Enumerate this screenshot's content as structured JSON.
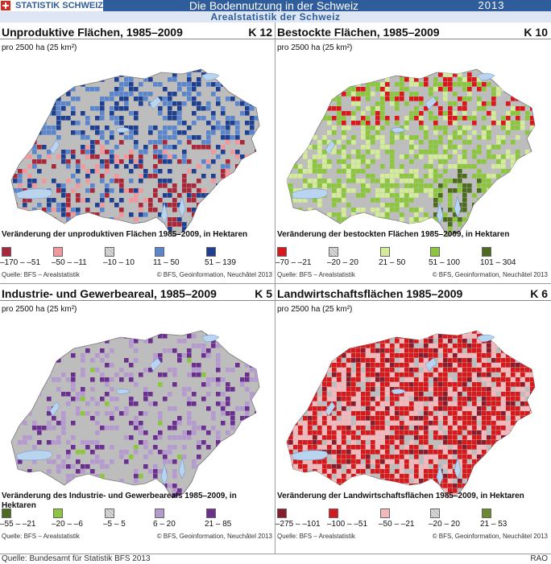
{
  "header": {
    "brand": "STATISTIK SCHWEIZ",
    "title": "Die Bodennutzung in der Schweiz",
    "year": "2013",
    "subtitle": "Arealstatistik der Schweiz"
  },
  "unit_label": "pro 2500 ha (25 km²)",
  "panels": [
    {
      "title": "Unproduktive Flächen, 1985–2009",
      "code": "K 12",
      "legend_title": "Veränderung der unproduktiven Flächen 1985–2009, in Hektaren",
      "legend": [
        {
          "label": "–170 – –51",
          "color": "#a6283a"
        },
        {
          "label": "–50 – –11",
          "color": "#f0989c"
        },
        {
          "label": "–10 – 10",
          "color": "hatch"
        },
        {
          "label": "11 – 50",
          "color": "#5b86cc"
        },
        {
          "label": "51 – 139",
          "color": "#1f3f8f"
        }
      ],
      "source": "Quelle: BFS – Arealstatistik",
      "copyright": "© BFS, Geoinformation, Neuchâtel 2013",
      "palette": [
        "#a6283a",
        "#f0989c",
        "#5b86cc",
        "#1f3f8f"
      ]
    },
    {
      "title": "Bestockte Flächen, 1985–2009",
      "code": "K 10",
      "legend_title": "Veränderung der bestockten Flächen 1985–2009, in Hektaren",
      "legend": [
        {
          "label": "–70 – –21",
          "color": "#d7191c"
        },
        {
          "label": "–20 – 20",
          "color": "hatch"
        },
        {
          "label": "21 – 50",
          "color": "#d4ec9a"
        },
        {
          "label": "51 – 100",
          "color": "#8cc63f"
        },
        {
          "label": "101 – 304",
          "color": "#4d6b1f"
        }
      ],
      "source": "Quelle: BFS – Arealstatistik",
      "copyright": "© BFS, Geoinformation, Neuchâtel 2013",
      "palette": [
        "#d4ec9a",
        "#8cc63f",
        "#4d6b1f",
        "#d7191c"
      ]
    },
    {
      "title": "Industrie- und Gewerbeareal, 1985–2009",
      "code": "K 5",
      "legend_title": "Veränderung des Industrie- und Gewerbeareals 1985–2009, in Hektaren",
      "legend": [
        {
          "label": "–55 – –21",
          "color": "#4d6b1f"
        },
        {
          "label": "–20 – –6",
          "color": "#8cc63f"
        },
        {
          "label": "–5 – 5",
          "color": "hatch"
        },
        {
          "label": "6 – 20",
          "color": "#b59ad0"
        },
        {
          "label": "21 – 85",
          "color": "#6a2f8f"
        }
      ],
      "source": "Quelle: BFS – Arealstatistik",
      "copyright": "© BFS, Geoinformation, Neuchâtel 2013",
      "palette": [
        "#b59ad0",
        "#6a2f8f",
        "#8cc63f"
      ]
    },
    {
      "title": "Landwirtschaftsflächen 1985–2009",
      "code": "K 6",
      "legend_title": "Veränderung der Landwirtschaftsflächen 1985–2009, in Hektaren",
      "legend": [
        {
          "label": "–275 – –101",
          "color": "#8b1a2a"
        },
        {
          "label": "–100 – –51",
          "color": "#d7191c"
        },
        {
          "label": "–50 – –21",
          "color": "#f3b8bb"
        },
        {
          "label": "–20 – 20",
          "color": "hatch"
        },
        {
          "label": "21 – 53",
          "color": "#6b8a2f"
        }
      ],
      "source": "Quelle: BFS – Arealstatistik",
      "copyright": "© BFS, Geoinformation, Neuchâtel 2013",
      "palette": [
        "#d7191c",
        "#f3b8bb",
        "#8b1a2a",
        "#d7191c"
      ]
    }
  ],
  "footer": {
    "source": "Quelle: Bundesamt für Statistik BFS 2013",
    "code": "RAO"
  }
}
